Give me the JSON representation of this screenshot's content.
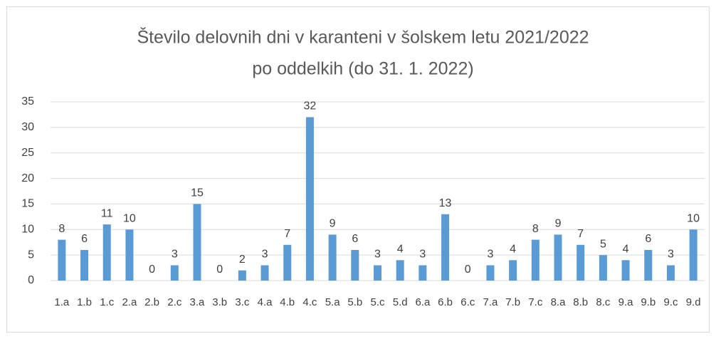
{
  "chart_data": {
    "type": "bar",
    "title": [
      "Število delovnih dni v karanteni v šolskem letu 2021/2022",
      "po oddelkih (do 31. 1. 2022)"
    ],
    "categories": [
      "1.a",
      "1.b",
      "1.c",
      "2.a",
      "2.b",
      "2.c",
      "3.a",
      "3.b",
      "3.c",
      "4.a",
      "4.b",
      "4.c",
      "5.a",
      "5.b",
      "5.c",
      "5.d",
      "6.a",
      "6.b",
      "6.c",
      "7.a",
      "7.b",
      "7.c",
      "8.a",
      "8.b",
      "8.c",
      "9.a",
      "9.b",
      "9.c",
      "9.d"
    ],
    "values": [
      8,
      6,
      11,
      10,
      0,
      3,
      15,
      0,
      2,
      3,
      7,
      32,
      9,
      6,
      3,
      4,
      3,
      13,
      0,
      3,
      4,
      8,
      9,
      7,
      5,
      4,
      6,
      3,
      10
    ],
    "color": "#5b9bd5",
    "ylim": [
      0,
      35
    ],
    "yticks": [
      0,
      5,
      10,
      15,
      20,
      25,
      30,
      35
    ],
    "grid": true
  }
}
